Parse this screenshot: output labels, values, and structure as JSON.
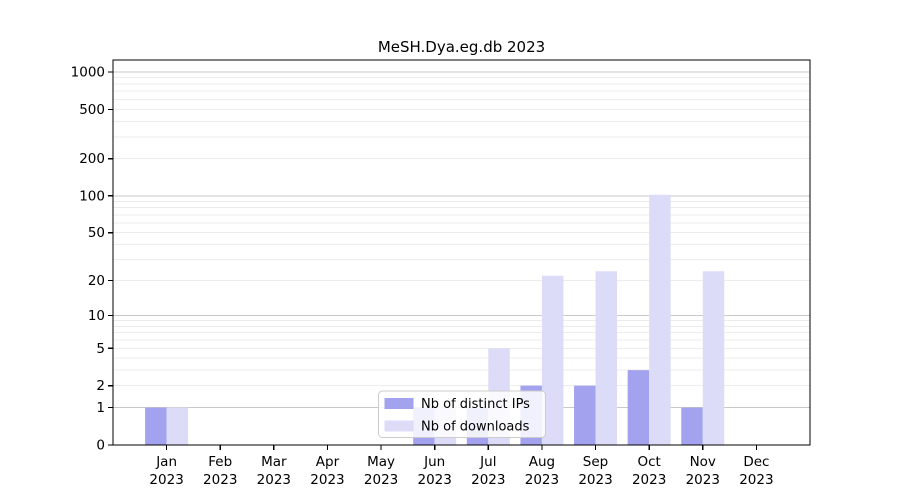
{
  "window": {
    "background": "#ffffff"
  },
  "chart_data": {
    "type": "bar",
    "title": "MeSH.Dya.eg.db 2023",
    "categories": [
      "Jan",
      "Feb",
      "Mar",
      "Apr",
      "May",
      "Jun",
      "Jul",
      "Aug",
      "Sep",
      "Oct",
      "Nov",
      "Dec"
    ],
    "category_year": "2023",
    "series": [
      {
        "name": "Nb of distinct IPs",
        "color": "#a2a2ef",
        "values": [
          1,
          0,
          0,
          0,
          0,
          1,
          1,
          2,
          2,
          3,
          1,
          0
        ]
      },
      {
        "name": "Nb of downloads",
        "color": "#dcdcf8",
        "values": [
          1,
          0,
          0,
          0,
          0,
          1,
          5,
          22,
          24,
          102,
          24,
          0
        ]
      }
    ],
    "yscale": "log1p",
    "ylim": [
      0,
      1250
    ],
    "ytick_labels": [
      "0",
      "1",
      "2",
      "5",
      "10",
      "20",
      "50",
      "100",
      "200",
      "500",
      "1000"
    ],
    "ytick_values": [
      0,
      1,
      2,
      5,
      10,
      20,
      50,
      100,
      200,
      500,
      1000
    ],
    "major_gridlines": [
      1,
      10,
      100,
      1000
    ],
    "minor_gridlines": [
      2,
      3,
      4,
      5,
      6,
      7,
      8,
      9,
      20,
      30,
      40,
      50,
      60,
      70,
      80,
      90,
      200,
      300,
      400,
      500,
      600,
      700,
      800,
      900
    ],
    "legend": {
      "entries": [
        "Nb of distinct IPs",
        "Nb of downloads"
      ],
      "position": "lower-center"
    },
    "colors": {
      "bar_ips": "#a2a2ef",
      "bar_downloads": "#dcdcf8",
      "grid_major": "#c9c9c9",
      "grid_minor": "#ececec",
      "axis": "#000000",
      "legend_border": "#cccccc",
      "legend_background": "rgba(255,255,255,0.85)"
    }
  }
}
